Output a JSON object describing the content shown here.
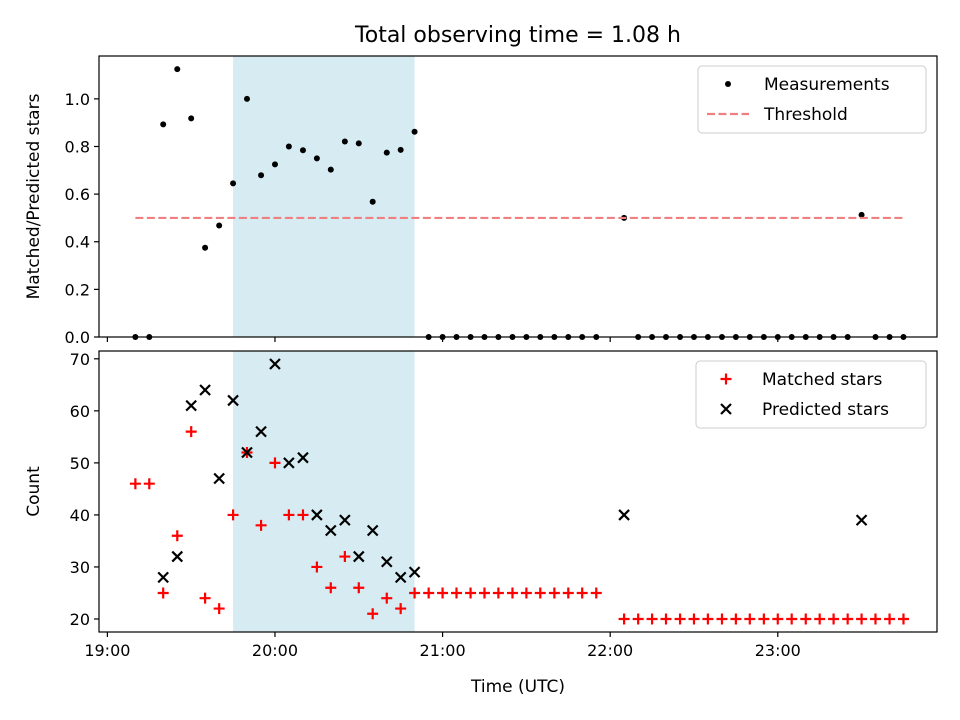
{
  "chart_data": {
    "title": "Total observing time = 1.08 h",
    "xlabel": "Time (UTC)",
    "xticks": [
      "19:00",
      "20:00",
      "21:00",
      "22:00",
      "23:00"
    ],
    "xlim_hours": [
      18.95,
      23.95
    ],
    "shaded_region_hours": [
      19.75,
      20.833
    ],
    "shade_color": "#add8e6",
    "panels": [
      {
        "type": "scatter",
        "ylabel": "Matched/Predicted stars",
        "ylim": [
          0,
          1.18
        ],
        "yticks": [
          "0.0",
          "0.2",
          "0.4",
          "0.6",
          "0.8",
          "1.0"
        ],
        "legend_position": "upper-right",
        "series": [
          {
            "name": "Measurements",
            "marker": "dot",
            "color": "#000000",
            "points": [
              [
                19.167,
                0
              ],
              [
                19.25,
                0
              ],
              [
                19.333,
                0.893
              ],
              [
                19.417,
                1.125
              ],
              [
                19.5,
                0.918
              ],
              [
                19.583,
                0.375
              ],
              [
                19.667,
                0.468
              ],
              [
                19.75,
                0.645
              ],
              [
                19.833,
                1.0
              ],
              [
                19.917,
                0.679
              ],
              [
                20.0,
                0.725
              ],
              [
                20.083,
                0.8
              ],
              [
                20.167,
                0.784
              ],
              [
                20.25,
                0.75
              ],
              [
                20.333,
                0.703
              ],
              [
                20.417,
                0.821
              ],
              [
                20.5,
                0.813
              ],
              [
                20.583,
                0.568
              ],
              [
                20.667,
                0.774
              ],
              [
                20.75,
                0.786
              ],
              [
                20.833,
                0.862
              ],
              [
                20.917,
                0
              ],
              [
                21.0,
                0
              ],
              [
                21.083,
                0
              ],
              [
                21.167,
                0
              ],
              [
                21.25,
                0
              ],
              [
                21.333,
                0
              ],
              [
                21.417,
                0
              ],
              [
                21.5,
                0
              ],
              [
                21.583,
                0
              ],
              [
                21.667,
                0
              ],
              [
                21.75,
                0
              ],
              [
                21.833,
                0
              ],
              [
                21.917,
                0
              ],
              [
                22.083,
                0.5
              ],
              [
                22.167,
                0
              ],
              [
                22.25,
                0
              ],
              [
                22.333,
                0
              ],
              [
                22.417,
                0
              ],
              [
                22.5,
                0
              ],
              [
                22.583,
                0
              ],
              [
                22.667,
                0
              ],
              [
                22.75,
                0
              ],
              [
                22.833,
                0
              ],
              [
                22.917,
                0
              ],
              [
                23.0,
                0
              ],
              [
                23.083,
                0
              ],
              [
                23.167,
                0
              ],
              [
                23.25,
                0
              ],
              [
                23.333,
                0
              ],
              [
                23.417,
                0
              ],
              [
                23.5,
                0.513
              ],
              [
                23.583,
                0
              ],
              [
                23.667,
                0
              ],
              [
                23.75,
                0
              ]
            ]
          },
          {
            "name": "Threshold",
            "marker": "dashed-line",
            "color": "#f08080",
            "points": [
              [
                19.167,
                0.5
              ],
              [
                23.75,
                0.5
              ]
            ]
          }
        ]
      },
      {
        "type": "scatter",
        "ylabel": "Count",
        "ylim": [
          17.5,
          71.5
        ],
        "yticks": [
          "20",
          "30",
          "40",
          "50",
          "60",
          "70"
        ],
        "legend_position": "upper-right",
        "series": [
          {
            "name": "Matched stars",
            "marker": "plus",
            "color": "#ff0000",
            "points": [
              [
                19.167,
                46
              ],
              [
                19.25,
                46
              ],
              [
                19.333,
                25
              ],
              [
                19.417,
                36
              ],
              [
                19.5,
                56
              ],
              [
                19.583,
                24
              ],
              [
                19.667,
                22
              ],
              [
                19.75,
                40
              ],
              [
                19.833,
                52
              ],
              [
                19.917,
                38
              ],
              [
                20.0,
                50
              ],
              [
                20.083,
                40
              ],
              [
                20.167,
                40
              ],
              [
                20.25,
                30
              ],
              [
                20.333,
                26
              ],
              [
                20.417,
                32
              ],
              [
                20.5,
                26
              ],
              [
                20.583,
                21
              ],
              [
                20.667,
                24
              ],
              [
                20.75,
                22
              ],
              [
                20.833,
                25
              ],
              [
                20.917,
                25
              ],
              [
                21.0,
                25
              ],
              [
                21.083,
                25
              ],
              [
                21.167,
                25
              ],
              [
                21.25,
                25
              ],
              [
                21.333,
                25
              ],
              [
                21.417,
                25
              ],
              [
                21.5,
                25
              ],
              [
                21.583,
                25
              ],
              [
                21.667,
                25
              ],
              [
                21.75,
                25
              ],
              [
                21.833,
                25
              ],
              [
                21.917,
                25
              ],
              [
                22.083,
                20
              ],
              [
                22.167,
                20
              ],
              [
                22.25,
                20
              ],
              [
                22.333,
                20
              ],
              [
                22.417,
                20
              ],
              [
                22.5,
                20
              ],
              [
                22.583,
                20
              ],
              [
                22.667,
                20
              ],
              [
                22.75,
                20
              ],
              [
                22.833,
                20
              ],
              [
                22.917,
                20
              ],
              [
                23.0,
                20
              ],
              [
                23.083,
                20
              ],
              [
                23.167,
                20
              ],
              [
                23.25,
                20
              ],
              [
                23.333,
                20
              ],
              [
                23.417,
                20
              ],
              [
                23.5,
                20
              ],
              [
                23.583,
                20
              ],
              [
                23.667,
                20
              ],
              [
                23.75,
                20
              ]
            ]
          },
          {
            "name": "Predicted stars",
            "marker": "x",
            "color": "#000000",
            "points": [
              [
                19.333,
                28
              ],
              [
                19.417,
                32
              ],
              [
                19.5,
                61
              ],
              [
                19.583,
                64
              ],
              [
                19.667,
                47
              ],
              [
                19.75,
                62
              ],
              [
                19.833,
                52
              ],
              [
                19.917,
                56
              ],
              [
                20.0,
                69
              ],
              [
                20.083,
                50
              ],
              [
                20.167,
                51
              ],
              [
                20.25,
                40
              ],
              [
                20.333,
                37
              ],
              [
                20.417,
                39
              ],
              [
                20.5,
                32
              ],
              [
                20.583,
                37
              ],
              [
                20.667,
                31
              ],
              [
                20.75,
                28
              ],
              [
                20.833,
                29
              ],
              [
                22.083,
                40
              ],
              [
                23.5,
                39
              ]
            ]
          }
        ]
      }
    ]
  }
}
